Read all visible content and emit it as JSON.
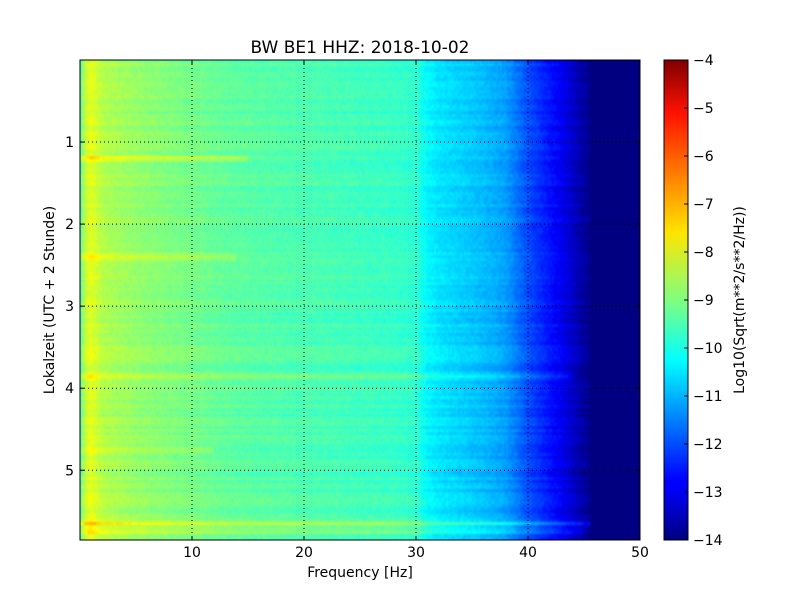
{
  "chart_data": {
    "type": "heatmap",
    "title": "BW BE1 HHZ: 2018-10-02",
    "xlabel": "Frequency [Hz]",
    "ylabel": "Lokalzeit (UTC + 2 Stunde)",
    "xlim": [
      0,
      50
    ],
    "ylim": [
      0,
      5.85
    ],
    "y_inverted": true,
    "grid": true,
    "colormap": "jet",
    "x_ticks": [
      {
        "value": 10,
        "label": "10"
      },
      {
        "value": 20,
        "label": "20"
      },
      {
        "value": 30,
        "label": "30"
      },
      {
        "value": 40,
        "label": "40"
      },
      {
        "value": 50,
        "label": "50"
      }
    ],
    "y_ticks": [
      {
        "value": 1,
        "label": "1"
      },
      {
        "value": 2,
        "label": "2"
      },
      {
        "value": 3,
        "label": "3"
      },
      {
        "value": 4,
        "label": "4"
      },
      {
        "value": 5,
        "label": "5"
      }
    ],
    "colorbar": {
      "label": "Log10(Sqrt(m**2/s**2/Hz))",
      "range": [
        -14,
        -4
      ],
      "ticks": [
        {
          "value": -4,
          "label": "−4"
        },
        {
          "value": -5,
          "label": "−5"
        },
        {
          "value": -6,
          "label": "−6"
        },
        {
          "value": -7,
          "label": "−7"
        },
        {
          "value": -8,
          "label": "−8"
        },
        {
          "value": -9,
          "label": "−9"
        },
        {
          "value": -10,
          "label": "−10"
        },
        {
          "value": -11,
          "label": "−11"
        },
        {
          "value": -12,
          "label": "−12"
        },
        {
          "value": -13,
          "label": "−13"
        },
        {
          "value": -14,
          "label": "−14"
        }
      ]
    },
    "frequency_profile": {
      "frequency_hz": [
        0,
        0.5,
        1,
        2,
        3,
        5,
        8,
        10,
        13,
        16,
        20,
        24,
        28,
        30,
        31,
        32,
        34,
        36,
        38,
        39,
        40,
        41,
        42,
        43,
        44,
        45,
        46,
        48,
        50
      ],
      "log10_amplitude": [
        -9.4,
        -8.3,
        -8.0,
        -8.5,
        -8.6,
        -8.8,
        -9.0,
        -9.1,
        -9.3,
        -9.4,
        -9.5,
        -9.6,
        -9.7,
        -9.8,
        -10.3,
        -10.5,
        -10.7,
        -10.9,
        -11.2,
        -11.6,
        -12.0,
        -12.3,
        -12.6,
        -12.9,
        -13.3,
        -13.7,
        -14.0,
        -14.0,
        -14.0
      ]
    },
    "horizontal_bands": [
      {
        "time_h": 1.2,
        "delta": 0.9,
        "max_frequency_hz": 15
      },
      {
        "time_h": 2.4,
        "delta": 0.6,
        "max_frequency_hz": 14
      },
      {
        "time_h": 3.85,
        "delta": 0.8,
        "max_frequency_hz": 44
      },
      {
        "time_h": 4.75,
        "delta": 0.6,
        "max_frequency_hz": 12
      },
      {
        "time_h": 5.65,
        "delta": 1.2,
        "max_frequency_hz": 46
      },
      {
        "time_h": 5.75,
        "delta": 0.7,
        "max_frequency_hz": 45
      }
    ]
  }
}
